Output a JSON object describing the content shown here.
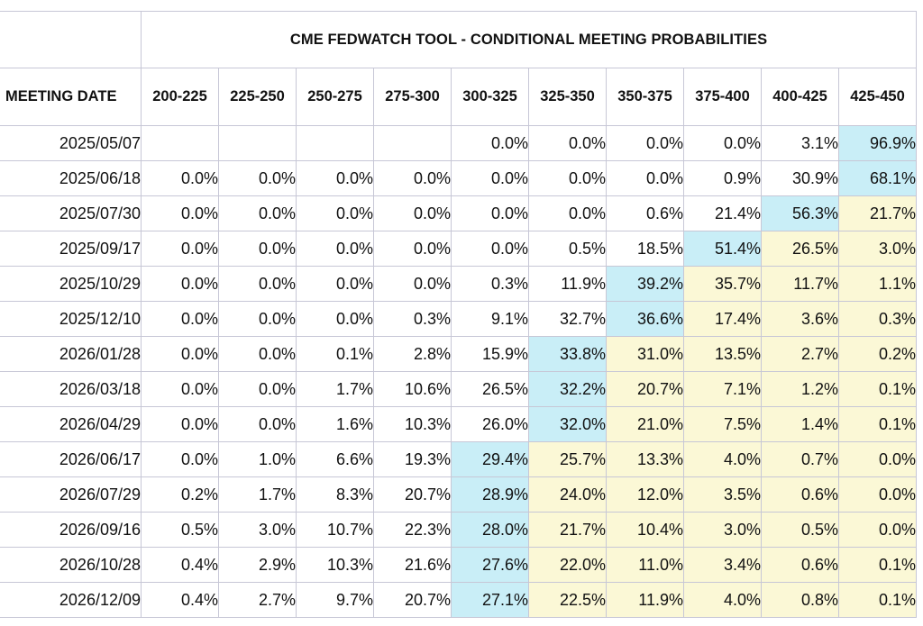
{
  "title": "CME FEDWATCH TOOL - CONDITIONAL MEETING PROBABILITIES",
  "colors": {
    "highlight": "#c9eef7",
    "above": "#fbf8d6",
    "border": "#c7c7d6"
  },
  "chart_data": {
    "type": "table",
    "title": "CME FEDWATCH TOOL - CONDITIONAL MEETING PROBABILITIES",
    "row_header": "MEETING DATE",
    "columns": [
      "200-225",
      "225-250",
      "250-275",
      "275-300",
      "300-325",
      "325-350",
      "350-375",
      "375-400",
      "400-425",
      "425-450"
    ],
    "rows": [
      {
        "date": "2025/05/07",
        "values": [
          "",
          "",
          "",
          "",
          "0.0%",
          "0.0%",
          "0.0%",
          "0.0%",
          "3.1%",
          "96.9%"
        ]
      },
      {
        "date": "2025/06/18",
        "values": [
          "0.0%",
          "0.0%",
          "0.0%",
          "0.0%",
          "0.0%",
          "0.0%",
          "0.0%",
          "0.9%",
          "30.9%",
          "68.1%"
        ]
      },
      {
        "date": "2025/07/30",
        "values": [
          "0.0%",
          "0.0%",
          "0.0%",
          "0.0%",
          "0.0%",
          "0.0%",
          "0.6%",
          "21.4%",
          "56.3%",
          "21.7%"
        ]
      },
      {
        "date": "2025/09/17",
        "values": [
          "0.0%",
          "0.0%",
          "0.0%",
          "0.0%",
          "0.0%",
          "0.5%",
          "18.5%",
          "51.4%",
          "26.5%",
          "3.0%"
        ]
      },
      {
        "date": "2025/10/29",
        "values": [
          "0.0%",
          "0.0%",
          "0.0%",
          "0.0%",
          "0.3%",
          "11.9%",
          "39.2%",
          "35.7%",
          "11.7%",
          "1.1%"
        ]
      },
      {
        "date": "2025/12/10",
        "values": [
          "0.0%",
          "0.0%",
          "0.0%",
          "0.3%",
          "9.1%",
          "32.7%",
          "36.6%",
          "17.4%",
          "3.6%",
          "0.3%"
        ]
      },
      {
        "date": "2026/01/28",
        "values": [
          "0.0%",
          "0.0%",
          "0.1%",
          "2.8%",
          "15.9%",
          "33.8%",
          "31.0%",
          "13.5%",
          "2.7%",
          "0.2%"
        ]
      },
      {
        "date": "2026/03/18",
        "values": [
          "0.0%",
          "0.0%",
          "1.7%",
          "10.6%",
          "26.5%",
          "32.2%",
          "20.7%",
          "7.1%",
          "1.2%",
          "0.1%"
        ]
      },
      {
        "date": "2026/04/29",
        "values": [
          "0.0%",
          "0.0%",
          "1.6%",
          "10.3%",
          "26.0%",
          "32.0%",
          "21.0%",
          "7.5%",
          "1.4%",
          "0.1%"
        ]
      },
      {
        "date": "2026/06/17",
        "values": [
          "0.0%",
          "1.0%",
          "6.6%",
          "19.3%",
          "29.4%",
          "25.7%",
          "13.3%",
          "4.0%",
          "0.7%",
          "0.0%"
        ]
      },
      {
        "date": "2026/07/29",
        "values": [
          "0.2%",
          "1.7%",
          "8.3%",
          "20.7%",
          "28.9%",
          "24.0%",
          "12.0%",
          "3.5%",
          "0.6%",
          "0.0%"
        ]
      },
      {
        "date": "2026/09/16",
        "values": [
          "0.5%",
          "3.0%",
          "10.7%",
          "22.3%",
          "28.0%",
          "21.7%",
          "10.4%",
          "3.0%",
          "0.5%",
          "0.0%"
        ]
      },
      {
        "date": "2026/10/28",
        "values": [
          "0.4%",
          "2.9%",
          "10.3%",
          "21.6%",
          "27.6%",
          "22.0%",
          "11.0%",
          "3.4%",
          "0.6%",
          "0.1%"
        ]
      },
      {
        "date": "2026/12/09",
        "values": [
          "0.4%",
          "2.7%",
          "9.7%",
          "20.7%",
          "27.1%",
          "22.5%",
          "11.9%",
          "4.0%",
          "0.8%",
          "0.1%"
        ]
      }
    ],
    "highlight_column": [
      9,
      9,
      8,
      7,
      6,
      6,
      5,
      5,
      5,
      4,
      4,
      4,
      4,
      4
    ]
  }
}
